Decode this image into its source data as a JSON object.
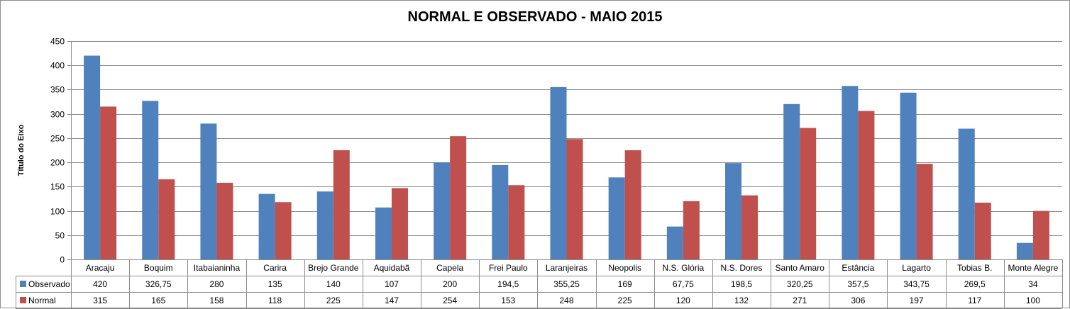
{
  "chart_data": {
    "type": "bar",
    "title": "NORMAL E OBSERVADO - MAIO 2015",
    "ylabel": "Título do Eixo",
    "xlabel": "",
    "ylim": [
      0,
      450
    ],
    "yticks": [
      0,
      50,
      100,
      150,
      200,
      250,
      300,
      350,
      400,
      450
    ],
    "grid": true,
    "legend_placement": "data-table",
    "categories": [
      "Aracaju",
      "Boquim",
      "Itabaianinha",
      "Carira",
      "Brejo Grande",
      "Aquidabã",
      "Capela",
      "Frei Paulo",
      "Laranjeiras",
      "Neopolis",
      "N.S. Glória",
      "N.S. Dores",
      "Santo Amaro",
      "Estância",
      "Lagarto",
      "Tobias B.",
      "Monte Alegre"
    ],
    "series": [
      {
        "name": "Observado",
        "color": "#4f81bd",
        "values": [
          420,
          326.75,
          280,
          135,
          140,
          107,
          200,
          194.5,
          355.25,
          169,
          67.75,
          198.5,
          320.25,
          357.5,
          343.75,
          269.5,
          34
        ],
        "labels": [
          "420",
          "326,75",
          "280",
          "135",
          "140",
          "107",
          "200",
          "194,5",
          "355,25",
          "169",
          "67,75",
          "198,5",
          "320,25",
          "357,5",
          "343,75",
          "269,5",
          "34"
        ]
      },
      {
        "name": "Normal",
        "color": "#c0504d",
        "values": [
          315,
          165,
          158,
          118,
          225,
          147,
          254,
          153,
          248,
          225,
          120,
          132,
          271,
          306,
          197,
          117,
          100
        ],
        "labels": [
          "315",
          "165",
          "158",
          "118",
          "225",
          "147",
          "254",
          "153",
          "248",
          "225",
          "120",
          "132",
          "271",
          "306",
          "197",
          "117",
          "100"
        ]
      }
    ]
  }
}
